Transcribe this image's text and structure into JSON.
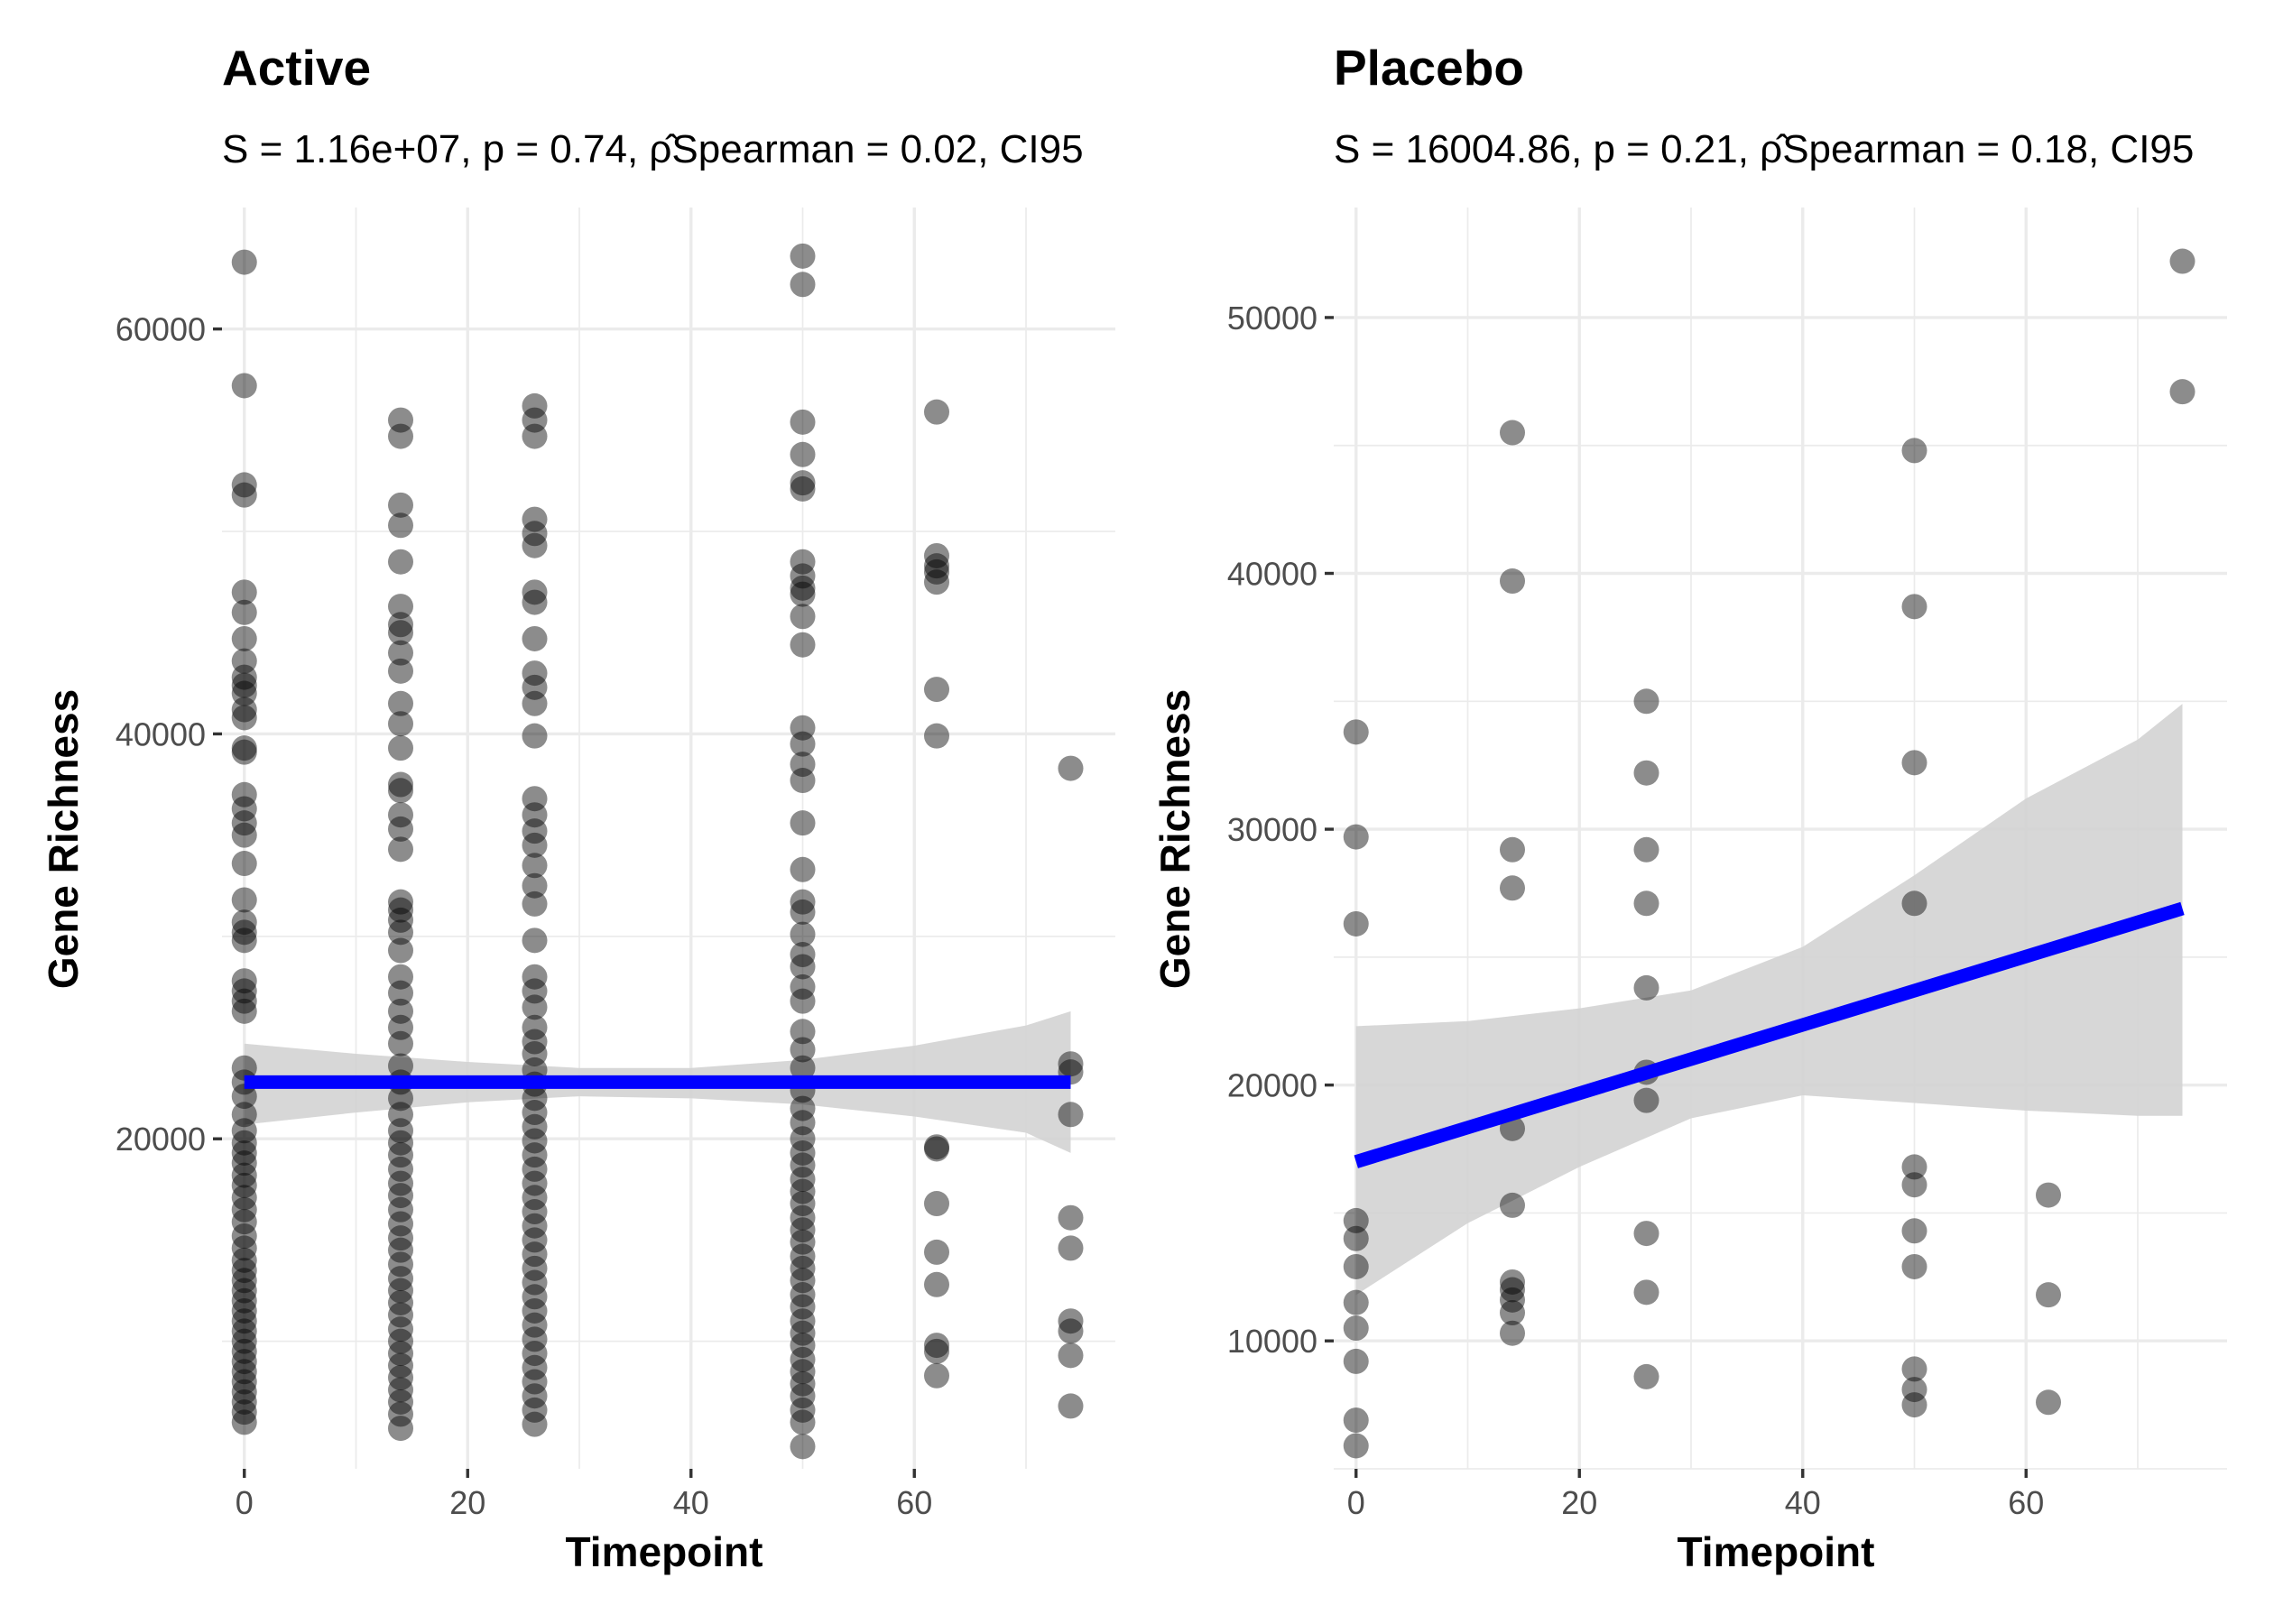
{
  "chart_data": [
    {
      "type": "scatter",
      "title": "Active",
      "subtitle": "S = 1.16e+07, p = 0.74, ρ̂Spearman = 0.02, CI95",
      "xlabel": "Timepoint",
      "ylabel": "Gene Richness",
      "xlim": [
        -2,
        78
      ],
      "ylim": [
        3700,
        66000
      ],
      "xticks": [
        0,
        20,
        40,
        60
      ],
      "yticks": [
        20000,
        40000,
        60000
      ],
      "grid": true,
      "point_color": "#000000",
      "point_alpha": 0.45,
      "fit_color": "#0000ff",
      "band_color": "#d3d3d3",
      "fit": {
        "x": [
          0,
          74
        ],
        "y": [
          22800,
          22800
        ]
      },
      "band": {
        "x": [
          0,
          10,
          20,
          30,
          40,
          50,
          60,
          70,
          74
        ],
        "lower": [
          20700,
          21300,
          21800,
          22100,
          22000,
          21700,
          21100,
          20300,
          19300
        ],
        "upper": [
          24700,
          24200,
          23800,
          23500,
          23500,
          23900,
          24600,
          25600,
          26300
        ]
      },
      "points": [
        {
          "x": 0,
          "y": [
            63300,
            57200,
            52300,
            51800,
            47000,
            46000,
            44700,
            43600,
            42800,
            42400,
            42000,
            41200,
            40800,
            39300,
            39100,
            37000,
            36300,
            35600,
            35000,
            33600,
            31800,
            30700,
            30200,
            29800,
            27800,
            27300,
            26800,
            26300,
            23500,
            22800,
            22100,
            21200,
            20400,
            19800,
            19300,
            18800,
            18200,
            17700,
            17100,
            16500,
            15900,
            15200,
            14600,
            14000,
            13500,
            13000,
            12500,
            12000,
            11500,
            11000,
            10500,
            10000,
            9500,
            9000,
            8500,
            8000,
            7500,
            7000,
            6500,
            6000
          ]
        },
        {
          "x": 14,
          "y": [
            55500,
            54700,
            51300,
            50300,
            48500,
            46300,
            45400,
            45000,
            44000,
            43100,
            41500,
            40500,
            39300,
            37500,
            37200,
            36000,
            35300,
            34300,
            31700,
            31300,
            30800,
            30200,
            29300,
            28000,
            27200,
            26300,
            25500,
            24700,
            23600,
            22800,
            22000,
            21200,
            20400,
            19800,
            19200,
            18500,
            17800,
            17200,
            16500,
            15800,
            15100,
            14500,
            13800,
            13100,
            12500,
            11900,
            11300,
            10600,
            10000,
            9400,
            8800,
            8200,
            7600,
            7000,
            6400,
            5700
          ]
        },
        {
          "x": 26,
          "y": [
            56200,
            55500,
            54700,
            50600,
            49900,
            49300,
            47000,
            46500,
            44700,
            43000,
            42300,
            41500,
            39900,
            36800,
            36000,
            35200,
            34500,
            33500,
            32500,
            31600,
            29800,
            28000,
            27300,
            26500,
            25500,
            24800,
            24200,
            23400,
            22700,
            22000,
            21300,
            20600,
            19900,
            19200,
            18500,
            17800,
            17100,
            16400,
            15700,
            15000,
            14300,
            13600,
            12900,
            12200,
            11500,
            10800,
            10100,
            9400,
            8700,
            8000,
            7300,
            6600,
            5900
          ]
        },
        {
          "x": 50,
          "y": [
            63600,
            62200,
            55400,
            53800,
            52400,
            52100,
            48500,
            47800,
            47200,
            46900,
            45800,
            44400,
            40300,
            39500,
            38500,
            37700,
            35600,
            33300,
            31700,
            31200,
            30100,
            29100,
            28500,
            27500,
            26800,
            25300,
            24400,
            23500,
            22400,
            21500,
            20800,
            20000,
            19300,
            18700,
            18000,
            17400,
            16800,
            16100,
            15500,
            14900,
            14200,
            13600,
            13000,
            12300,
            11700,
            11000,
            10400,
            9800,
            9100,
            8500,
            7900,
            7300,
            6600,
            6000,
            4800
          ]
        },
        {
          "x": 62,
          "y": [
            55900,
            48800,
            48300,
            48000,
            47500,
            42200,
            39900,
            19600,
            19500,
            16800,
            14400,
            12800,
            9800,
            9500,
            8300
          ]
        },
        {
          "x": 74,
          "y": [
            38300,
            23700,
            23300,
            21200,
            16100,
            14600,
            11000,
            10500,
            9300,
            6800
          ]
        }
      ]
    },
    {
      "type": "scatter",
      "title": "Placebo",
      "subtitle": "S = 16004.86, p = 0.21, ρ̂Spearman = 0.18, CI95",
      "xlabel": "Timepoint",
      "ylabel": "Gene Richness",
      "xlim": [
        -2,
        78
      ],
      "ylim": [
        5000,
        54300
      ],
      "xticks": [
        0,
        20,
        40,
        60
      ],
      "yticks": [
        10000,
        20000,
        30000,
        40000,
        50000
      ],
      "grid": true,
      "point_color": "#000000",
      "point_alpha": 0.45,
      "fit_color": "#0000ff",
      "band_color": "#d3d3d3",
      "fit": {
        "x": [
          0,
          74
        ],
        "y": [
          17000,
          26900
        ]
      },
      "band": {
        "x": [
          0,
          10,
          20,
          30,
          40,
          50,
          60,
          70,
          74
        ],
        "lower": [
          11800,
          14600,
          16800,
          18700,
          19600,
          19300,
          19000,
          18800,
          18800
        ],
        "upper": [
          22300,
          22500,
          23000,
          23700,
          25400,
          28200,
          31200,
          33500,
          34900
        ]
      },
      "points": [
        {
          "x": 0,
          "y": [
            33800,
            29700,
            26300,
            14700,
            14000,
            12900,
            11500,
            10500,
            9200,
            6900,
            5900
          ]
        },
        {
          "x": 14,
          "y": [
            45500,
            39700,
            29200,
            27700,
            18300,
            15300,
            12300,
            12000,
            11600,
            11100,
            10300
          ]
        },
        {
          "x": 26,
          "y": [
            35000,
            32200,
            29200,
            27100,
            23800,
            20500,
            19400,
            14200,
            11900,
            8600
          ]
        },
        {
          "x": 50,
          "y": [
            44800,
            38700,
            32600,
            27100,
            16800,
            16100,
            14300,
            12900,
            8900,
            8100,
            7500
          ]
        },
        {
          "x": 62,
          "y": [
            15700,
            11800,
            7600
          ]
        },
        {
          "x": 74,
          "y": [
            52200,
            47100
          ]
        }
      ]
    }
  ]
}
